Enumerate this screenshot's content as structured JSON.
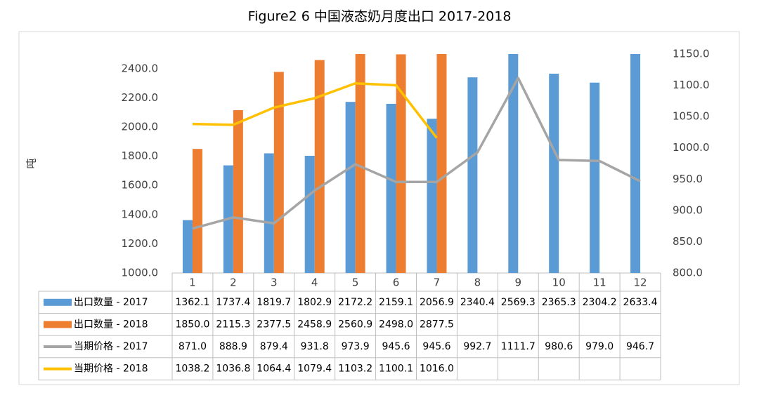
{
  "chart_data": {
    "type": "bar",
    "title": "Figure2 6 中国液态奶月度出口 2017-2018",
    "ylabel": "吨",
    "categories": [
      "1",
      "2",
      "3",
      "4",
      "5",
      "6",
      "7",
      "8",
      "9",
      "10",
      "11",
      "12"
    ],
    "ylim": [
      1000,
      2500
    ],
    "yticks": [
      {
        "value": 1000,
        "label": "1000.0"
      },
      {
        "value": 1200,
        "label": "1200.0"
      },
      {
        "value": 1400,
        "label": "1400.0"
      },
      {
        "value": 1600,
        "label": "1600.0"
      },
      {
        "value": 1800,
        "label": "1800.0"
      },
      {
        "value": 2000,
        "label": "2000.0"
      },
      {
        "value": 2200,
        "label": "2200.0"
      },
      {
        "value": 2400,
        "label": "2400.0"
      }
    ],
    "y2lim": [
      800,
      1150
    ],
    "y2ticks": [
      {
        "value": 800,
        "label": "800.0"
      },
      {
        "value": 850,
        "label": "850.0"
      },
      {
        "value": 900,
        "label": "900.0"
      },
      {
        "value": 950,
        "label": "950.0"
      },
      {
        "value": 1000,
        "label": "1000.0"
      },
      {
        "value": 1050,
        "label": "1050.0"
      },
      {
        "value": 1100,
        "label": "1100.0"
      },
      {
        "value": 1150,
        "label": "1150.0"
      }
    ],
    "grid": false,
    "series": [
      {
        "name": "出口数量 - 2017",
        "type": "bar",
        "color": "#5b9bd5",
        "values": [
          1362.1,
          1737.4,
          1819.7,
          1802.9,
          2172.2,
          2159.1,
          2056.9,
          2340.4,
          2569.3,
          2365.3,
          2304.2,
          2633.4
        ],
        "value_labels": [
          "1362.1",
          "1737.4",
          "1819.7",
          "1802.9",
          "2172.2",
          "2159.1",
          "2056.9",
          "2340.4",
          "2569.3",
          "2365.3",
          "2304.2",
          "2633.4"
        ]
      },
      {
        "name": "出口数量 - 2018",
        "type": "bar",
        "color": "#ed7d31",
        "values": [
          1850.0,
          2115.3,
          2377.5,
          2458.9,
          2560.9,
          2498.0,
          2877.5,
          null,
          null,
          null,
          null,
          null
        ],
        "value_labels": [
          "1850.0",
          "2115.3",
          "2377.5",
          "2458.9",
          "2560.9",
          "2498.0",
          "2877.5",
          null,
          null,
          null,
          null,
          null
        ]
      },
      {
        "name": "当期价格 - 2017",
        "type": "line",
        "axis": "y2",
        "color": "#a5a5a5",
        "values": [
          871.0,
          888.9,
          879.4,
          931.8,
          973.9,
          945.6,
          945.6,
          992.7,
          1111.7,
          980.6,
          979.0,
          946.7
        ],
        "value_labels": [
          "871.0",
          "888.9",
          "879.4",
          "931.8",
          "973.9",
          "945.6",
          "945.6",
          "992.7",
          "1111.7",
          "980.6",
          "979.0",
          "946.7"
        ]
      },
      {
        "name": "当期价格 - 2018",
        "type": "line",
        "axis": "y2",
        "color": "#ffc000",
        "values": [
          1038.2,
          1036.8,
          1064.4,
          1079.4,
          1103.2,
          1100.1,
          1016.0,
          null,
          null,
          null,
          null,
          null
        ],
        "value_labels": [
          "1038.2",
          "1036.8",
          "1064.4",
          "1079.4",
          "1103.2",
          "1100.1",
          "1016.0",
          null,
          null,
          null,
          null,
          null
        ]
      }
    ]
  }
}
